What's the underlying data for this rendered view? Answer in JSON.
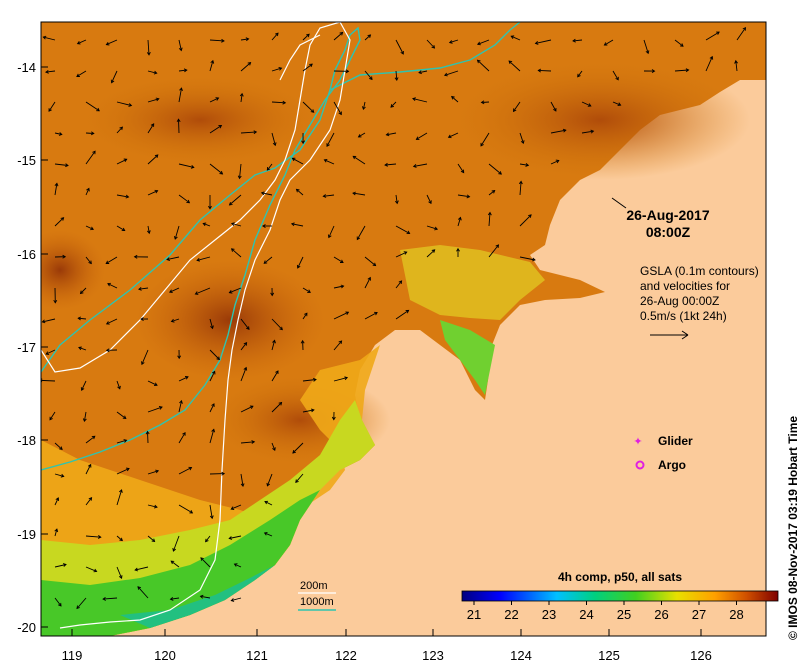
{
  "map": {
    "datetime_line1": "26-Aug-2017",
    "datetime_line2": "08:00Z",
    "gsla_lines": [
      "GSLA (0.1m contours)",
      "and velocities for",
      "26-Aug 00:00Z",
      "0.5m/s (1kt 24h)"
    ],
    "legend_glider": "Glider",
    "legend_argo": "Argo",
    "contour_200m": "200m",
    "contour_1000m": "1000m",
    "colorbar_title": "4h comp, p50, all sats",
    "colorbar_ticks": [
      "21",
      "22",
      "23",
      "24",
      "25",
      "26",
      "27",
      "28"
    ],
    "credit": "© IMOS 08-Nov-2017 03:19 Hobart Time",
    "x_ticks": [
      "119",
      "120",
      "121",
      "122",
      "123",
      "124",
      "125",
      "126"
    ],
    "y_ticks": [
      "-14",
      "-15",
      "-16",
      "-17",
      "-18",
      "-19",
      "-20"
    ],
    "colors": {
      "land": "#fbcb9b",
      "sst_warm": "#d2700c",
      "sst_hot": "#a8400a",
      "sst_mid": "#f0a000",
      "sst_cool": "#a8e030",
      "sst_green": "#40c020",
      "contour_200m": "#2ec4b0",
      "contour_1000m": "#ffffff",
      "glider": "#e020e0",
      "argo": "#e020e0"
    }
  }
}
